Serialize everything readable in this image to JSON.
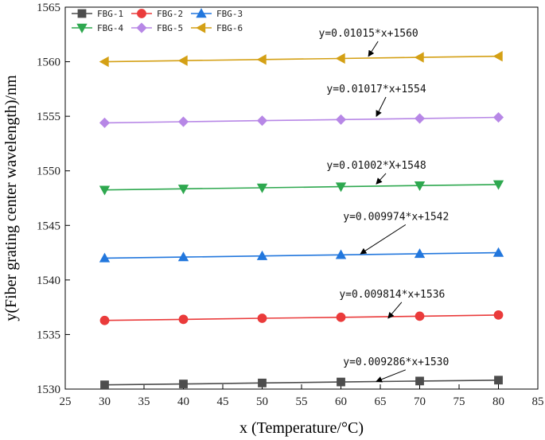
{
  "chart_data": {
    "type": "line",
    "title": "",
    "xlabel": "x (Temperature/°C)",
    "ylabel": "y(Fiber grating center wavelength)/nm",
    "xlim": [
      25,
      85
    ],
    "ylim": [
      1530,
      1565
    ],
    "xticks": [
      25,
      30,
      35,
      40,
      45,
      50,
      55,
      60,
      65,
      70,
      75,
      80,
      85
    ],
    "yticks": [
      1530,
      1535,
      1540,
      1545,
      1550,
      1555,
      1560,
      1565
    ],
    "grid": false,
    "legend_position": "top-left",
    "x": [
      30,
      40,
      50,
      60,
      70,
      80
    ],
    "series": [
      {
        "name": "FBG-1",
        "color": "#4d4d4d",
        "marker": "square",
        "values": [
          1530.39,
          1530.47,
          1530.56,
          1530.65,
          1530.74,
          1530.82
        ]
      },
      {
        "name": "FBG-2",
        "color": "#ea3b3b",
        "marker": "circle",
        "values": [
          1536.29,
          1536.39,
          1536.49,
          1536.58,
          1536.68,
          1536.79
        ]
      },
      {
        "name": "FBG-3",
        "color": "#2277dd",
        "marker": "triangle-up",
        "values": [
          1542.0,
          1542.1,
          1542.2,
          1542.3,
          1542.4,
          1542.5
        ]
      },
      {
        "name": "FBG-4",
        "color": "#2ea84f",
        "marker": "triangle-down",
        "values": [
          1548.25,
          1548.35,
          1548.45,
          1548.55,
          1548.65,
          1548.75
        ]
      },
      {
        "name": "FBG-5",
        "color": "#b787e6",
        "marker": "diamond",
        "values": [
          1554.4,
          1554.5,
          1554.6,
          1554.7,
          1554.8,
          1554.9
        ]
      },
      {
        "name": "FBG-6",
        "color": "#d4a015",
        "marker": "triangle-left",
        "values": [
          1560.0,
          1560.1,
          1560.2,
          1560.3,
          1560.4,
          1560.5
        ]
      }
    ],
    "annotations": [
      {
        "text": "y=0.01015*x+1560",
        "series": "FBG-6",
        "x": 63.5,
        "y": 1562.3,
        "arrow_to": [
          63.5,
          1560.5
        ]
      },
      {
        "text": "y=0.01017*x+1554",
        "series": "FBG-5",
        "x": 64.5,
        "y": 1557.2,
        "arrow_to": [
          64.5,
          1555.0
        ]
      },
      {
        "text": "y=0.01002*X+1548",
        "series": "FBG-4",
        "x": 64.5,
        "y": 1550.2,
        "arrow_to": [
          64.5,
          1548.8
        ]
      },
      {
        "text": "y=0.009974*x+1542",
        "series": "FBG-3",
        "x": 67.0,
        "y": 1545.5,
        "arrow_to": [
          62.5,
          1542.4
        ]
      },
      {
        "text": "y=0.009814*x+1536",
        "series": "FBG-2",
        "x": 66.5,
        "y": 1538.4,
        "arrow_to": [
          66.0,
          1536.5
        ]
      },
      {
        "text": "y=0.009286*x+1530",
        "series": "FBG-1",
        "x": 67.0,
        "y": 1532.2,
        "arrow_to": [
          64.5,
          1530.7
        ]
      }
    ]
  }
}
